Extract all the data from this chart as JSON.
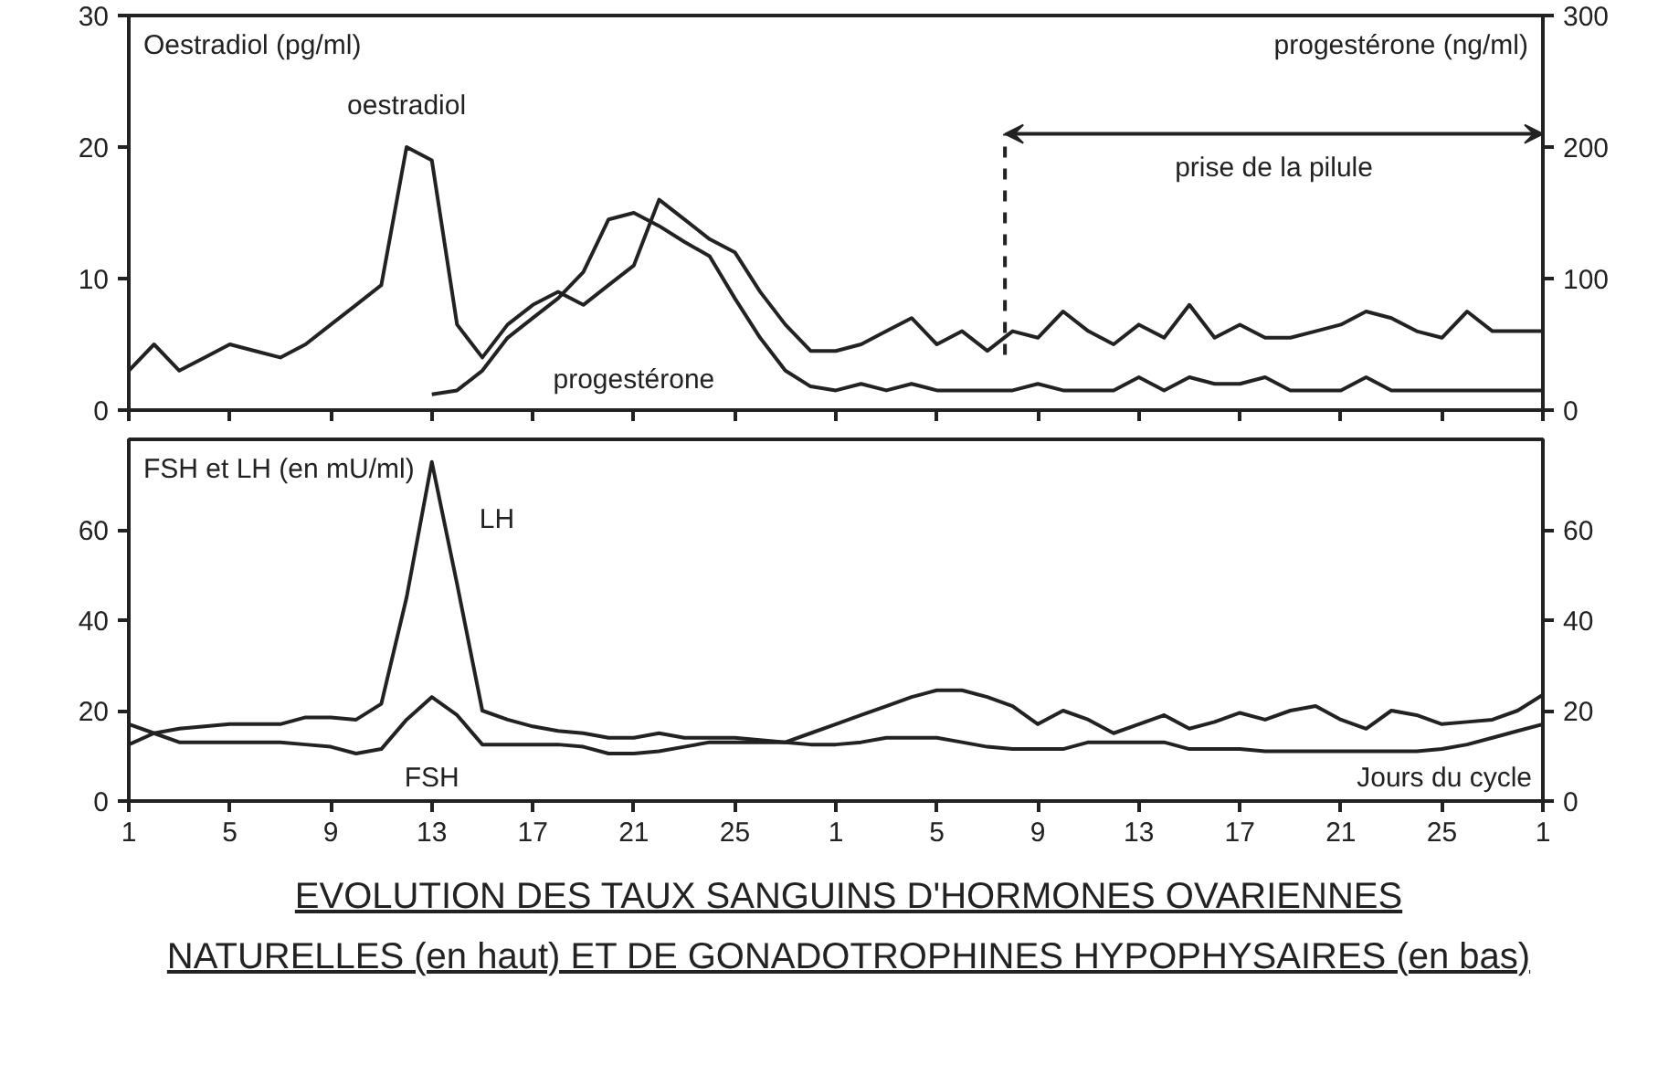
{
  "chart_data": [
    {
      "type": "line",
      "tick_labels": "y",
      "grid": false,
      "line_style": "solid",
      "ylabel": "Oestradiol (pg/ml)",
      "y2label": "progestérone (ng/ml)",
      "categories": [
        "1",
        null,
        null,
        null,
        "5",
        null,
        null,
        null,
        "9",
        null,
        null,
        null,
        "13",
        null,
        null,
        null,
        "17",
        null,
        null,
        null,
        "21",
        null,
        null,
        null,
        "25",
        null,
        null,
        null,
        "1",
        null,
        null,
        null,
        "5",
        null,
        null,
        null,
        "9",
        null,
        null,
        null,
        "13",
        null,
        null,
        null,
        "17",
        null,
        null,
        null,
        "21",
        null,
        null,
        null,
        "25",
        null,
        null,
        null,
        "1"
      ],
      "ylim": [
        0,
        30
      ],
      "yticks": [
        0,
        10,
        20,
        30
      ],
      "y2lim": [
        0,
        300
      ],
      "y2ticks": [
        0,
        100,
        200,
        300
      ],
      "series": [
        {
          "name": "oestradiol",
          "color": "#222222",
          "values": [
            3,
            5,
            3,
            4,
            5,
            4.5,
            4,
            5,
            6.5,
            8,
            9.5,
            20,
            19,
            6.5,
            4,
            6.5,
            8,
            9,
            8,
            9.5,
            11,
            16,
            14.5,
            13,
            12,
            9,
            6.5,
            4.5,
            4.5,
            5,
            6,
            7,
            5,
            6,
            4.5,
            6,
            5.5,
            7.5,
            6,
            5,
            6.5,
            5.5,
            8,
            5.5,
            6.5,
            5.5,
            5.5,
            6,
            6.5,
            7.5,
            7,
            6,
            5.5,
            7.5,
            6,
            6,
            6
          ]
        },
        {
          "name": "progestérone",
          "color": "#222222",
          "axis": "y2",
          "values": [
            null,
            null,
            null,
            null,
            null,
            null,
            null,
            null,
            null,
            null,
            null,
            null,
            12,
            15,
            30,
            55,
            70,
            85,
            105,
            145,
            150,
            140,
            128,
            117,
            85,
            55,
            30,
            18,
            15,
            20,
            15,
            20,
            15,
            15,
            15,
            15,
            20,
            15,
            15,
            15,
            25,
            15,
            25,
            20,
            20,
            25,
            15,
            15,
            15,
            25,
            15,
            15,
            15,
            15,
            15,
            15,
            15
          ]
        }
      ],
      "annotations": [
        "prise de la pilule"
      ]
    },
    {
      "type": "line",
      "grid": false,
      "line_style": "solid",
      "ylabel": "FSH et LH (en mU/ml)",
      "xlabel": "Jours du cycle",
      "categories": [
        "1",
        null,
        null,
        null,
        "5",
        null,
        null,
        null,
        "9",
        null,
        null,
        null,
        "13",
        null,
        null,
        null,
        "17",
        null,
        null,
        null,
        "21",
        null,
        null,
        null,
        "25",
        null,
        null,
        null,
        "1",
        null,
        null,
        null,
        "5",
        null,
        null,
        null,
        "9",
        null,
        null,
        null,
        "13",
        null,
        null,
        null,
        "17",
        null,
        null,
        null,
        "21",
        null,
        null,
        null,
        "25",
        null,
        null,
        null,
        "1"
      ],
      "ylim": [
        0,
        80
      ],
      "yticks": [
        0,
        20,
        40,
        60
      ],
      "y2lim": [
        0,
        80
      ],
      "y2ticks": [
        0,
        20,
        40,
        60
      ],
      "series": [
        {
          "name": "LH",
          "color": "#222222",
          "values": [
            17,
            15,
            16,
            16.5,
            17,
            17,
            17,
            18.5,
            18.5,
            18,
            21.5,
            45,
            75,
            48,
            20,
            18,
            16.5,
            15.5,
            15,
            14,
            14,
            15,
            14,
            14,
            14,
            13.5,
            13,
            15,
            17,
            19,
            21,
            23,
            24.5,
            24.5,
            23,
            21,
            17,
            20,
            18,
            15,
            17,
            19,
            16,
            17.5,
            19.5,
            18,
            20,
            21,
            18,
            16,
            20,
            19,
            17,
            17.5,
            18,
            20,
            23.5
          ]
        },
        {
          "name": "FSH",
          "color": "#222222",
          "values": [
            12.5,
            15,
            13,
            13,
            13,
            13,
            13,
            12.5,
            12,
            10.5,
            11.5,
            18,
            23,
            19,
            12.5,
            12.5,
            12.5,
            12.5,
            12,
            10.5,
            10.5,
            11,
            12,
            13,
            13,
            13,
            13,
            12.5,
            12.5,
            13,
            14,
            14,
            14,
            13,
            12,
            11.5,
            11.5,
            11.5,
            13,
            13,
            13,
            13,
            11.5,
            11.5,
            11.5,
            11,
            11,
            11,
            11,
            11,
            11,
            11,
            11.5,
            12.5,
            14,
            15.5,
            17
          ]
        }
      ],
      "annotations": [
        "EVOLUTION DES TAUX SANGUINS D'HORMONES OVARIENNES",
        "NATURELLES (en haut) ET DE GONADOTROPHINES HYPOPHYSAIRES (en bas)"
      ]
    }
  ]
}
